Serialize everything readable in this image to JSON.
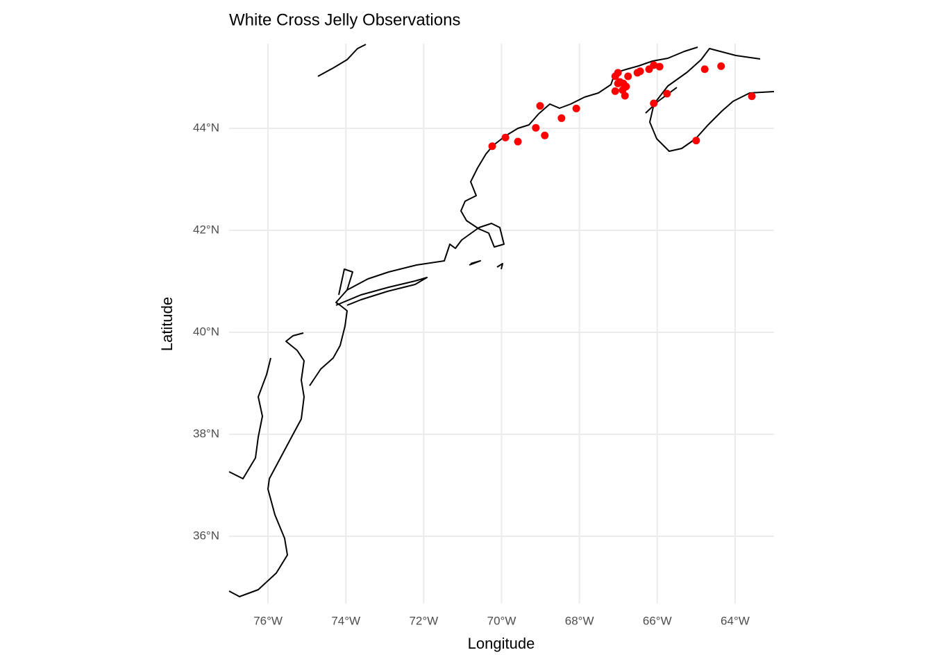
{
  "chart_data": {
    "type": "scatter",
    "title": "White Cross Jelly Observations",
    "xlabel": "Longitude",
    "ylabel": "Latitude",
    "color": "#ff0000",
    "grid": true,
    "x": [
      -70.24,
      -69.9,
      -69.58,
      -69.12,
      -69.01,
      -68.89,
      -68.46,
      -68.08,
      -67.08,
      -67.08,
      -67.01,
      -66.96,
      -66.89,
      -66.83,
      -66.8,
      -66.75,
      -67.01,
      -66.87,
      -66.51,
      -66.44,
      -66.21,
      -66.09,
      -65.94,
      -66.09,
      -65.75,
      -65.0,
      -64.78,
      -64.36,
      -63.57
    ],
    "values": [
      43.65,
      43.82,
      43.74,
      44.01,
      44.44,
      43.86,
      44.2,
      44.39,
      44.73,
      45.02,
      45.09,
      44.91,
      44.75,
      44.64,
      44.82,
      45.02,
      44.88,
      44.88,
      45.09,
      45.12,
      45.16,
      45.24,
      45.21,
      44.49,
      44.68,
      43.76,
      45.16,
      45.22,
      44.63
    ],
    "xlim": [
      -77,
      -63
    ],
    "ylim": [
      34.68,
      45.66
    ],
    "xticks": [
      {
        "value": -76,
        "label": "76°W"
      },
      {
        "value": -74,
        "label": "74°W"
      },
      {
        "value": -72,
        "label": "72°W"
      },
      {
        "value": -70,
        "label": "70°W"
      },
      {
        "value": -68,
        "label": "68°W"
      },
      {
        "value": -66,
        "label": "66°W"
      },
      {
        "value": -64,
        "label": "64°W"
      }
    ],
    "yticks": [
      {
        "value": 36,
        "label": "36°N"
      },
      {
        "value": 38,
        "label": "38°N"
      },
      {
        "value": 40,
        "label": "40°N"
      },
      {
        "value": 42,
        "label": "42°N"
      },
      {
        "value": 44,
        "label": "44°N"
      }
    ]
  }
}
